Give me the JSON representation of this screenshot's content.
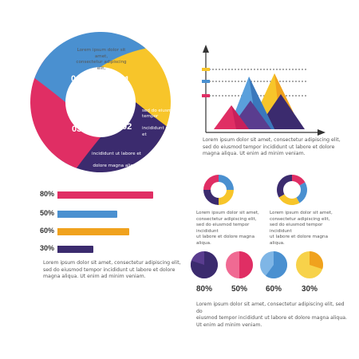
{
  "cycle": {
    "segments": [
      {
        "label": "01",
        "color": "#f7c52a"
      },
      {
        "label": "02",
        "color": "#3b2b6e"
      },
      {
        "label": "03",
        "color": "#e02e64"
      },
      {
        "label": "04",
        "color": "#4a90d0"
      }
    ],
    "lorem_lines": [
      "Lorem ipsum dolor sit amet,",
      "consectetur adipiscing elit,",
      "sed do eiusmod tempor",
      "incididunt ut labore et",
      "dolore magna aliqua."
    ]
  },
  "mountain_chart": {
    "text": "Lorem ipsum dolor sit amet, consectetur adipiscing elit,\nsed do eiusmod tempor incididunt ut labore et dolore\nmagna aliqua. Ut enim ad minim veniam."
  },
  "bars": [
    {
      "label": "80%",
      "value": 80,
      "color": "#e02e64"
    },
    {
      "label": "50%",
      "value": 50,
      "color": "#4a90d0"
    },
    {
      "label": "60%",
      "value": 60,
      "color": "#f0a21e"
    },
    {
      "label": "30%",
      "value": 30,
      "color": "#3b2b6e"
    }
  ],
  "bars_text": "Lorem ipsum dolor sit amet, consectetur adipiscing elit,\nsed do eiusmod tempor incididunt ut labore et dolore\nmagna aliqua. Ut enim ad minim veniam.",
  "donuts": [
    {
      "text": "Lorem ipsum dolor sit amet,\nconsectetur adipiscing elit,\nsed do eiusmod tempor incididunt\nut labore et dolore magna\naliqua."
    },
    {
      "text": "Lorem ipsum dolor sit amet,\nconsectetur adipiscing elit,\nsed do eiusmod tempor incididunt\nut labore et dolore magna\naliqua."
    }
  ],
  "pies": [
    {
      "label": "80%",
      "value": 80,
      "base": "#5a3d8f",
      "fill": "#3b2b6e"
    },
    {
      "label": "50%",
      "value": 50,
      "base": "#f06a93",
      "fill": "#e02e64"
    },
    {
      "label": "60%",
      "value": 60,
      "base": "#7fb6e6",
      "fill": "#4a90d0"
    },
    {
      "label": "30%",
      "value": 30,
      "base": "#f7d24a",
      "fill": "#f0a21e"
    }
  ],
  "pies_text": "Lorem ipsum dolor sit amet, consectetur adipiscing elit, sed do\neiusmod tempor incididunt ut labore et dolore magna aliqua.\nUt enim ad minim veniam."
}
